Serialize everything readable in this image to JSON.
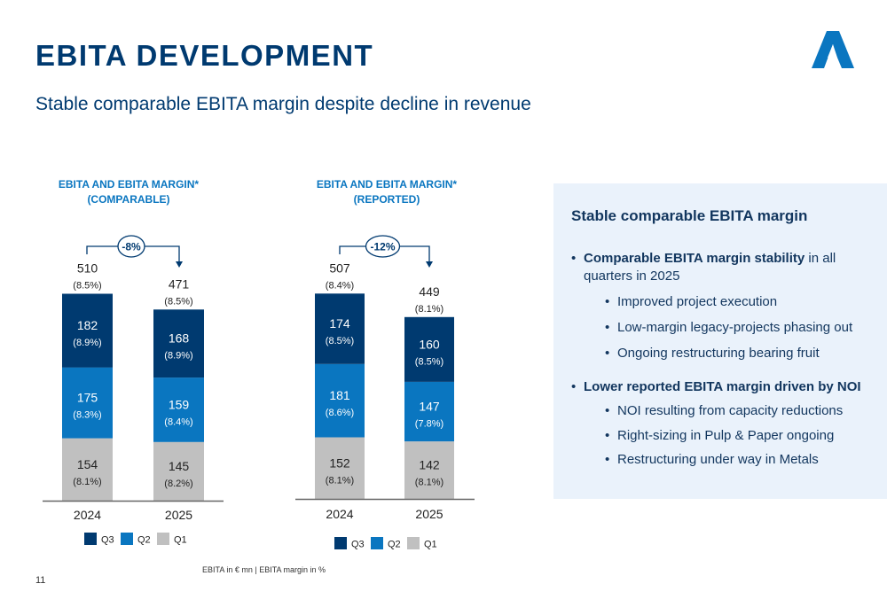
{
  "header": {
    "title": "EBITA DEVELOPMENT",
    "subtitle": "Stable comparable EBITA margin despite decline in revenue",
    "logo": "company-a-logo-icon"
  },
  "colors": {
    "title": "#003a70",
    "q3": "#003a70",
    "q2": "#0a76c0",
    "q1": "#c0c0c0",
    "chart_title": "#0a76c0",
    "panel_bg": "#eaf2fb"
  },
  "chart_data": [
    {
      "type": "bar",
      "stacked": true,
      "title": "EBITA AND EBITA MARGIN*",
      "subtitle": "(COMPARABLE)",
      "categories": [
        "2024",
        "2025"
      ],
      "series": [
        {
          "name": "Q1",
          "values": [
            154,
            145
          ],
          "margins": [
            "(8.1%)",
            "(8.2%)"
          ]
        },
        {
          "name": "Q2",
          "values": [
            175,
            159
          ],
          "margins": [
            "(8.3%)",
            "(8.4%)"
          ]
        },
        {
          "name": "Q3",
          "values": [
            182,
            168
          ],
          "margins": [
            "(8.9%)",
            "(8.9%)"
          ]
        }
      ],
      "totals": [
        510,
        471
      ],
      "total_margins": [
        "(8.5%)",
        "(8.5%)"
      ],
      "change_label": "-8%",
      "legend": [
        "Q3",
        "Q2",
        "Q1"
      ],
      "legend_position": "bottom",
      "xlabel": "",
      "ylabel": "",
      "ylim": [
        0,
        510
      ],
      "grid": false
    },
    {
      "type": "bar",
      "stacked": true,
      "title": "EBITA AND EBITA MARGIN*",
      "subtitle": "(REPORTED)",
      "categories": [
        "2024",
        "2025"
      ],
      "series": [
        {
          "name": "Q1",
          "values": [
            152,
            142
          ],
          "margins": [
            "(8.1%)",
            "(8.1%)"
          ]
        },
        {
          "name": "Q2",
          "values": [
            181,
            147
          ],
          "margins": [
            "(8.6%)",
            "(7.8%)"
          ]
        },
        {
          "name": "Q3",
          "values": [
            174,
            160
          ],
          "margins": [
            "(8.5%)",
            "(8.5%)"
          ]
        }
      ],
      "totals": [
        507,
        449
      ],
      "total_margins": [
        "(8.4%)",
        "(8.1%)"
      ],
      "change_label": "-12%",
      "legend": [
        "Q3",
        "Q2",
        "Q1"
      ],
      "legend_position": "bottom",
      "xlabel": "",
      "ylabel": "",
      "ylim": [
        0,
        507
      ],
      "grid": false
    }
  ],
  "panel": {
    "heading": "Stable comparable EBITA margin",
    "bullets": [
      {
        "bold": "Comparable EBITA margin stability",
        "text": " in all",
        "text2": "quarters in 2025",
        "sub": [
          "Improved project execution",
          "Low-margin legacy-projects phasing out",
          "Ongoing restructuring bearing fruit"
        ]
      },
      {
        "bold": "Lower reported EBITA margin driven by NOI",
        "text": "",
        "text2": "",
        "sub": [
          "NOI resulting from capacity reductions",
          "Right-sizing in Pulp & Paper ongoing",
          "Restructuring under way in Metals"
        ]
      }
    ],
    "bullet_glyph": "•"
  },
  "footnote": "EBITA in € mn | EBITA margin in %",
  "page_number": "11"
}
